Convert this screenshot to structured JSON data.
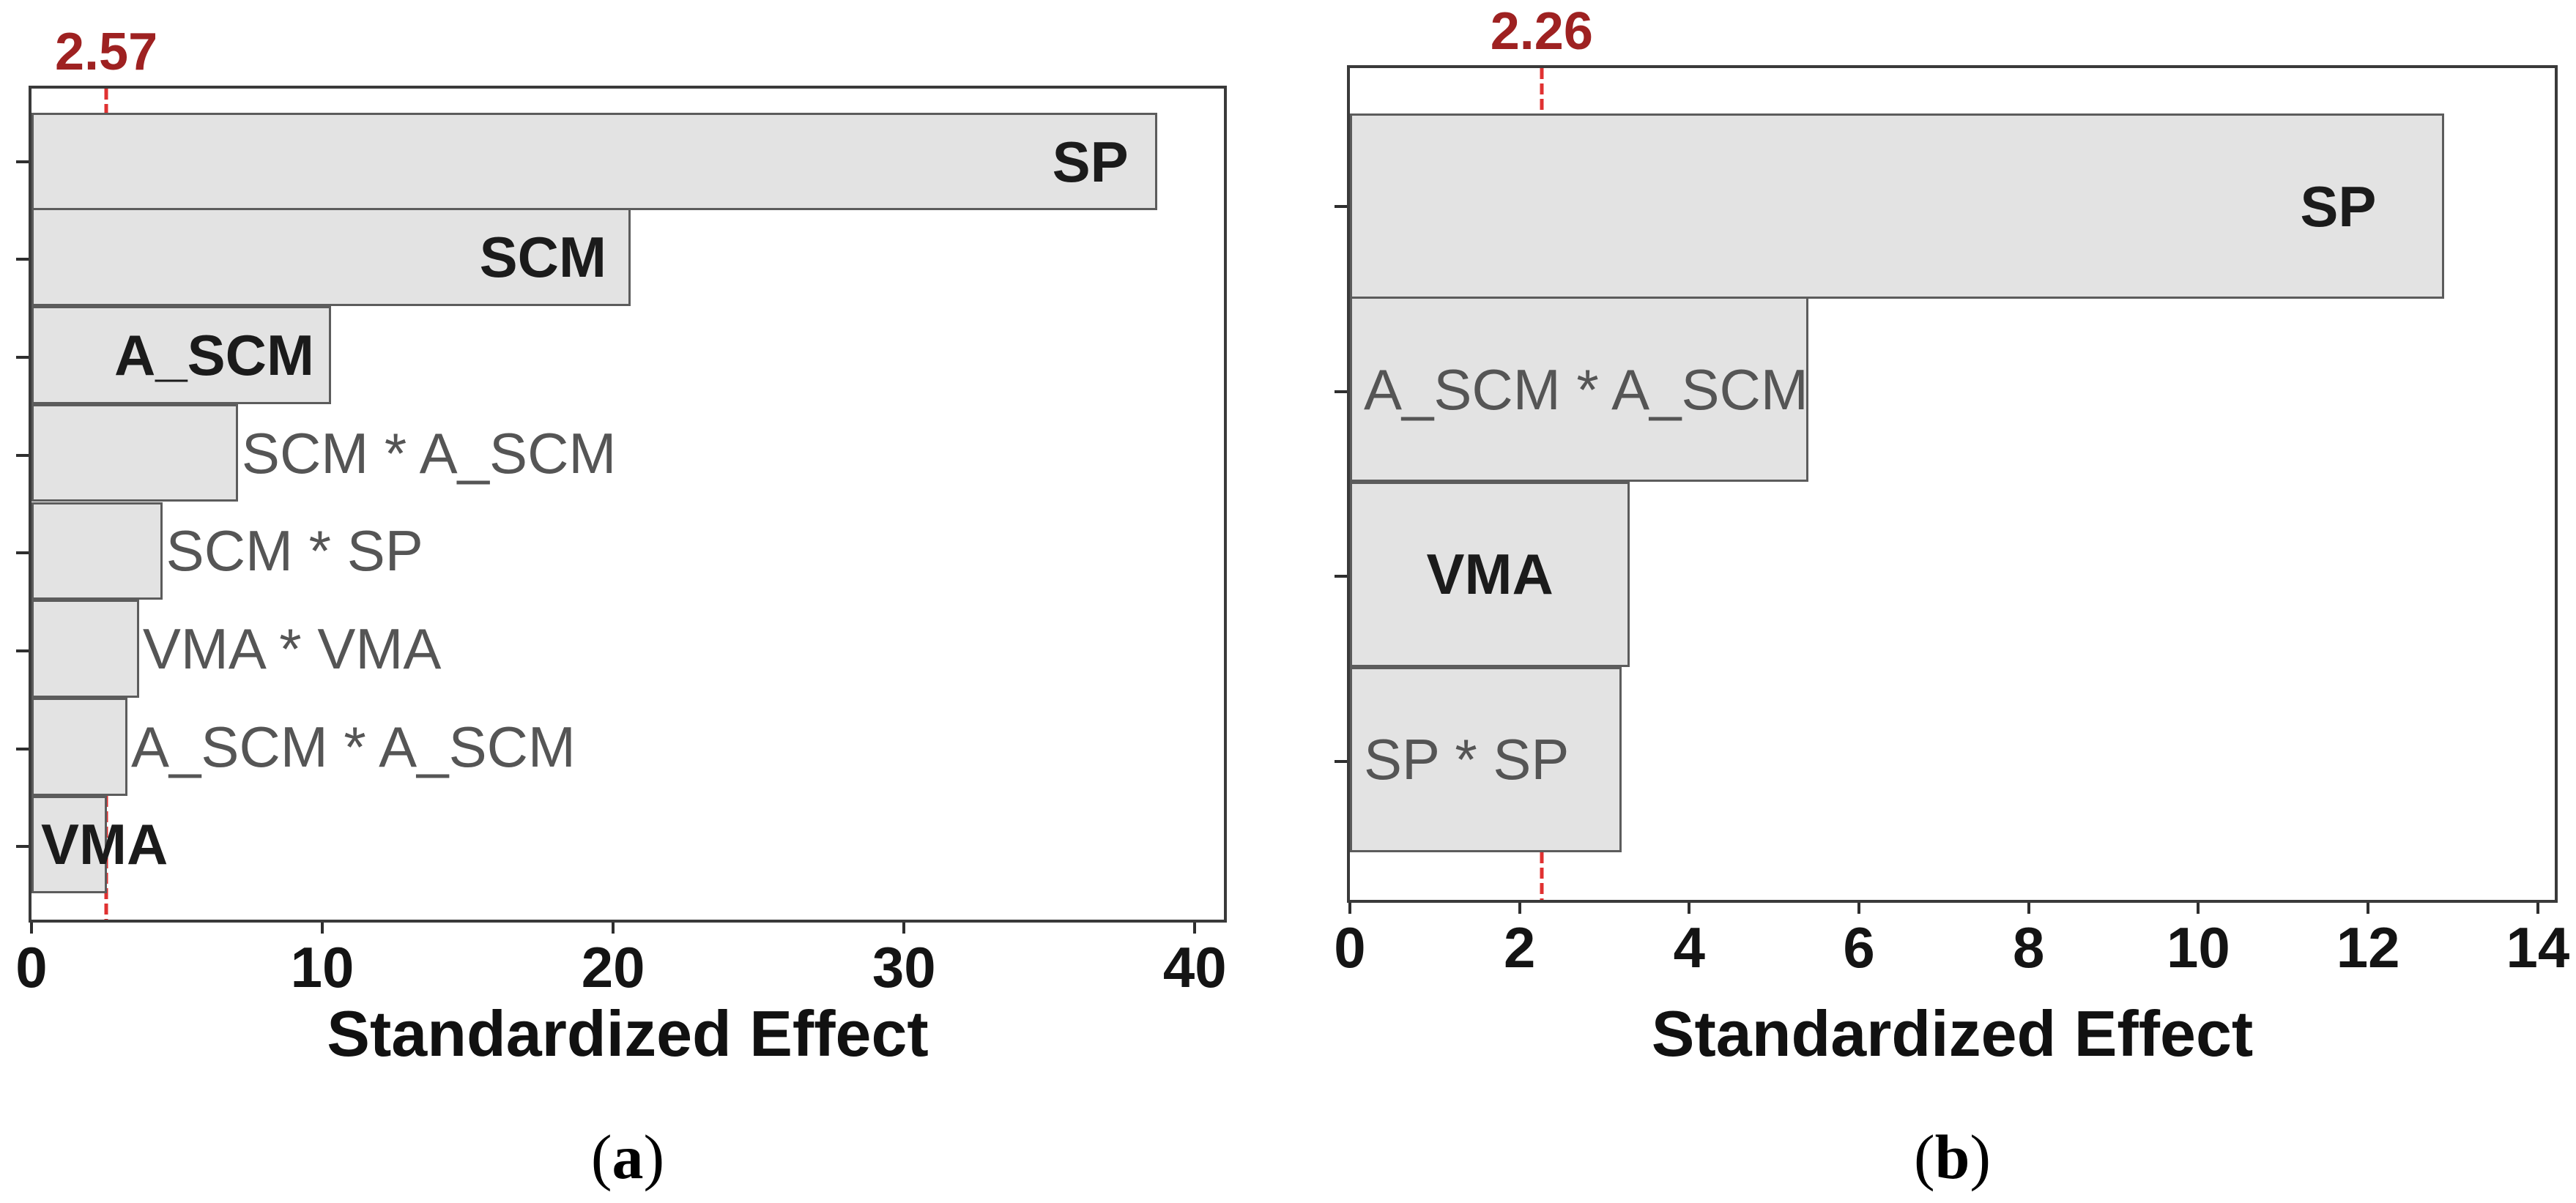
{
  "colors": {
    "frame_border": "#3a3a3a",
    "bar_fill": "#e3e3e3",
    "bar_border": "#5c5c5c",
    "axis_tick": "#2e2e2e",
    "tick_label": "#141414",
    "axis_label": "#111111",
    "ref_line": "#e03131",
    "ref_label": "#9e2121",
    "label_primary": "#1b1b1b",
    "label_secondary": "#555555",
    "caption": "#000000"
  },
  "chart_data": [
    {
      "type": "bar",
      "orientation": "horizontal",
      "panel": "a",
      "caption": "(a)",
      "caption_parts": [
        "(",
        "a",
        ")"
      ],
      "title": "",
      "xlabel": "Standardized Effect",
      "ylabel": "",
      "xlim": [
        0,
        41
      ],
      "xticks": [
        0,
        10,
        20,
        30,
        40
      ],
      "grid": false,
      "legend": "none",
      "reference_line": {
        "value": 2.57,
        "label": "2.57"
      },
      "categories": [
        "SP",
        "SCM",
        "A_SCM",
        "SCM * A_SCM",
        "SCM * SP",
        "VMA * VMA",
        "A_SCM * A_SCM",
        "VMA"
      ],
      "values": [
        38.7,
        20.6,
        10.3,
        7.1,
        4.5,
        3.7,
        3.3,
        2.6
      ],
      "bars": [
        {
          "label": "SP",
          "value": 38.7,
          "label_style": "primary",
          "label_placement": "inside-right",
          "label_inset": 36
        },
        {
          "label": "SCM",
          "value": 20.6,
          "label_style": "primary",
          "label_placement": "inside-right",
          "label_inset": 30
        },
        {
          "label": "A_SCM",
          "value": 10.3,
          "label_style": "primary",
          "label_placement": "inside-right",
          "label_inset": 20
        },
        {
          "label": "SCM * A_SCM",
          "value": 7.1,
          "label_style": "secondary",
          "label_placement": "outside-right"
        },
        {
          "label": "SCM * SP",
          "value": 4.5,
          "label_style": "secondary",
          "label_placement": "outside-right"
        },
        {
          "label": "VMA * VMA",
          "value": 3.7,
          "label_style": "secondary",
          "label_placement": "outside-right"
        },
        {
          "label": "A_SCM * A_SCM",
          "value": 3.3,
          "label_style": "secondary",
          "label_placement": "outside-right"
        },
        {
          "label": "VMA",
          "value": 2.6,
          "label_style": "primary",
          "label_placement": "overflow-left"
        }
      ]
    },
    {
      "type": "bar",
      "orientation": "horizontal",
      "panel": "b",
      "caption": "(b)",
      "caption_parts": [
        "(",
        "b",
        ")"
      ],
      "title": "",
      "xlabel": "Standardized Effect",
      "ylabel": "",
      "xlim": [
        0,
        14.2
      ],
      "xticks": [
        0,
        2,
        4,
        6,
        8,
        10,
        12,
        14
      ],
      "grid": false,
      "legend": "none",
      "reference_line": {
        "value": 2.26,
        "label": "2.26"
      },
      "categories": [
        "SP",
        "A_SCM * A_SCM",
        "VMA",
        "SP * SP"
      ],
      "values": [
        12.9,
        5.4,
        3.3,
        3.2
      ],
      "bars": [
        {
          "label": "SP",
          "value": 12.9,
          "label_style": "primary",
          "label_placement": "inside-right",
          "label_inset": 90
        },
        {
          "label": "A_SCM * A_SCM",
          "value": 5.4,
          "label_style": "secondary",
          "label_placement": "inside-left"
        },
        {
          "label": "VMA",
          "value": 3.3,
          "label_style": "primary",
          "label_placement": "inside-center"
        },
        {
          "label": "SP * SP",
          "value": 3.2,
          "label_style": "secondary",
          "label_placement": "inside-left"
        }
      ]
    }
  ]
}
